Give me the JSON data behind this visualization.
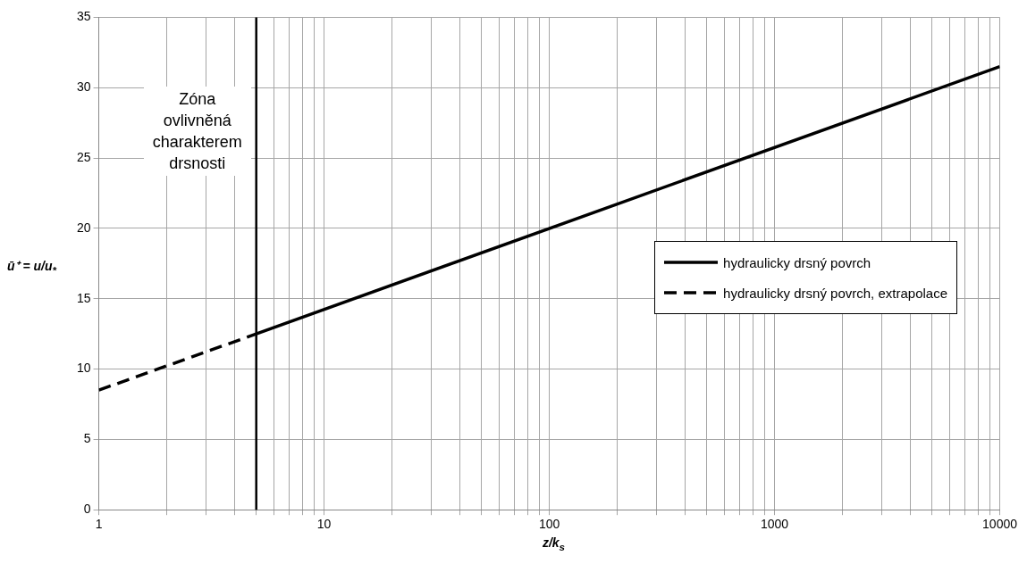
{
  "chart_data": {
    "type": "line",
    "xlabel": "z/k$_{s}$",
    "ylabel": "ū⁺ = u/u$_{*}$",
    "xlim": [
      1,
      10000
    ],
    "ylim": [
      0,
      35
    ],
    "log": "x",
    "grid": true,
    "legend": "right",
    "marker": "none",
    "xticks": [
      1,
      {
        "value": 2,
        "label": null
      },
      {
        "value": 3,
        "label": null
      },
      {
        "value": 4,
        "label": null
      },
      {
        "value": 5,
        "label": null
      },
      {
        "value": 6,
        "label": null
      },
      {
        "value": 7,
        "label": null
      },
      {
        "value": 8,
        "label": null
      },
      {
        "value": 9,
        "label": null
      },
      10,
      {
        "value": 20,
        "label": null
      },
      {
        "value": 30,
        "label": null
      },
      {
        "value": 40,
        "label": null
      },
      {
        "value": 50,
        "label": null
      },
      {
        "value": 60,
        "label": null
      },
      {
        "value": 70,
        "label": null
      },
      {
        "value": 80,
        "label": null
      },
      {
        "value": 90,
        "label": null
      },
      100,
      {
        "value": 200,
        "label": null
      },
      {
        "value": 300,
        "label": null
      },
      {
        "value": 400,
        "label": null
      },
      {
        "value": 500,
        "label": null
      },
      {
        "value": 600,
        "label": null
      },
      {
        "value": 700,
        "label": null
      },
      {
        "value": 800,
        "label": null
      },
      {
        "value": 900,
        "label": null
      },
      1000,
      {
        "value": 2000,
        "label": null
      },
      {
        "value": 3000,
        "label": null
      },
      {
        "value": 4000,
        "label": null
      },
      {
        "value": 5000,
        "label": null
      },
      {
        "value": 6000,
        "label": null
      },
      {
        "value": 7000,
        "label": null
      },
      {
        "value": 8000,
        "label": null
      },
      {
        "value": 9000,
        "label": null
      },
      10000
    ],
    "yticks": [
      0,
      5,
      10,
      15,
      20,
      25,
      30,
      35
    ],
    "ref_lines": [
      {
        "axis": "x",
        "value": 5,
        "color": "#000000",
        "line_style": "solid"
      }
    ],
    "annotations": [
      "Zóna ovlivněná charakterem drsnosti"
    ],
    "series": [
      {
        "name": "hydraulicky drsný povrch",
        "type": "line",
        "color": "#000000",
        "line_style": "solid",
        "x": [
          5,
          10000
        ],
        "values": [
          12.5,
          31.5
        ]
      },
      {
        "name": "hydraulicky drsný povrch, extrapolace",
        "type": "line",
        "color": "#000000",
        "line_style": "dashed",
        "x": [
          1,
          5
        ],
        "values": [
          8.5,
          12.5
        ]
      }
    ]
  }
}
